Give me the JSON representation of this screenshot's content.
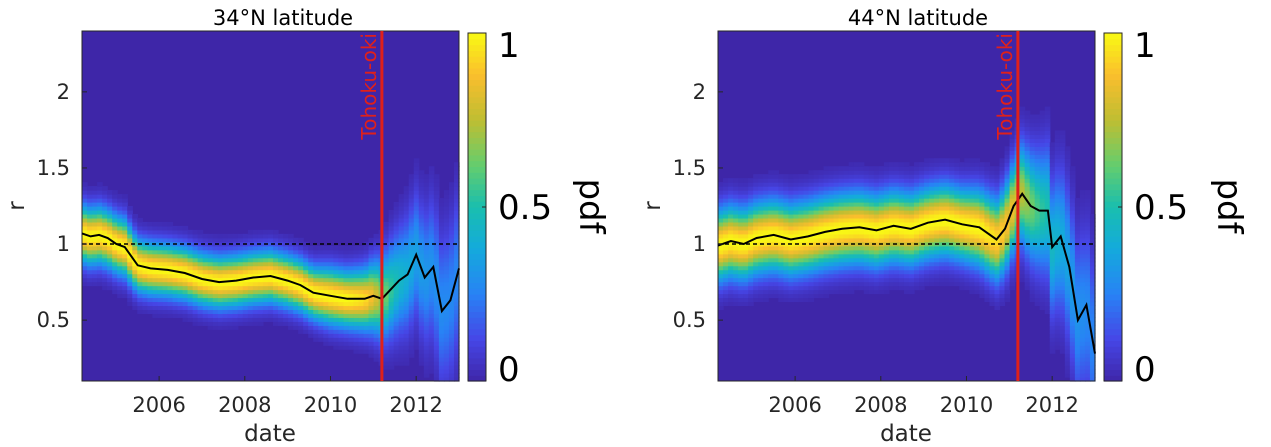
{
  "chart_data": [
    {
      "type": "heatmap",
      "title": "34°N latitude",
      "xlabel": "date",
      "ylabel": "r",
      "xlim": [
        2004.2,
        2013.0
      ],
      "ylim": [
        0.1,
        2.4
      ],
      "x_ticks": [
        2006,
        2008,
        2010,
        2012
      ],
      "x_tick_labels": [
        "2006",
        "2008",
        "2010",
        "2012"
      ],
      "y_ticks": [
        0.5,
        1,
        1.5,
        2
      ],
      "y_tick_labels": [
        "0.5",
        "1",
        "1.5",
        "2"
      ],
      "grid": false,
      "colorbar": {
        "label": "pdf",
        "range": [
          0,
          1
        ],
        "ticks": [
          0,
          0.5,
          1
        ],
        "tick_labels": [
          "0",
          "0.5",
          "1"
        ],
        "colormap": "parula"
      },
      "reference_line": {
        "y": 1,
        "style": "dashed",
        "color": "#000000"
      },
      "event_line": {
        "x": 2011.2,
        "label": "Tohoku-oki",
        "color": "#e0201a"
      },
      "series": [
        {
          "x": [
            2004.2,
            2004.4,
            2004.6,
            2004.8,
            2005.0,
            2005.2,
            2005.5,
            2005.8,
            2006.2,
            2006.6,
            2007.0,
            2007.4,
            2007.8,
            2008.2,
            2008.6,
            2009.0,
            2009.3,
            2009.6,
            2010.0,
            2010.4,
            2010.8,
            2011.0,
            2011.2,
            2011.4,
            2011.6,
            2011.8,
            2012.0,
            2012.2,
            2012.4,
            2012.6,
            2012.8,
            2013.0
          ],
          "y": [
            1.07,
            1.05,
            1.06,
            1.04,
            1.0,
            0.98,
            0.86,
            0.84,
            0.83,
            0.81,
            0.77,
            0.75,
            0.76,
            0.78,
            0.79,
            0.76,
            0.73,
            0.68,
            0.66,
            0.64,
            0.64,
            0.66,
            0.64,
            0.7,
            0.76,
            0.8,
            0.93,
            0.78,
            0.85,
            0.56,
            0.63,
            0.84
          ],
          "pdf_spread": [
            0.12,
            0.12,
            0.12,
            0.12,
            0.12,
            0.12,
            0.11,
            0.11,
            0.11,
            0.11,
            0.11,
            0.11,
            0.11,
            0.11,
            0.11,
            0.11,
            0.11,
            0.11,
            0.12,
            0.12,
            0.13,
            0.15,
            0.17,
            0.2,
            0.22,
            0.24,
            0.26,
            0.28,
            0.3,
            0.32,
            0.33,
            0.34
          ],
          "pdf_peak": [
            1,
            1,
            1,
            1,
            1,
            1,
            1,
            1,
            1,
            1,
            1,
            1,
            1,
            1,
            1,
            1,
            1,
            1,
            1,
            1,
            0.95,
            0.85,
            0.7,
            0.55,
            0.45,
            0.4,
            0.35,
            0.32,
            0.3,
            0.28,
            0.27,
            0.26
          ]
        }
      ]
    },
    {
      "type": "heatmap",
      "title": "44°N latitude",
      "xlabel": "date",
      "ylabel": "r",
      "xlim": [
        2004.2,
        2013.0
      ],
      "ylim": [
        0.1,
        2.4
      ],
      "x_ticks": [
        2006,
        2008,
        2010,
        2012
      ],
      "x_tick_labels": [
        "2006",
        "2008",
        "2010",
        "2012"
      ],
      "y_ticks": [
        0.5,
        1,
        1.5,
        2
      ],
      "y_tick_labels": [
        "0.5",
        "1",
        "1.5",
        "2"
      ],
      "grid": false,
      "colorbar": {
        "label": "pdf",
        "range": [
          0,
          1
        ],
        "ticks": [
          0,
          0.5,
          1
        ],
        "tick_labels": [
          "0",
          "0.5",
          "1"
        ],
        "colormap": "parula"
      },
      "reference_line": {
        "y": 1,
        "style": "dashed",
        "color": "#000000"
      },
      "event_line": {
        "x": 2011.2,
        "label": "Tohoku-oki",
        "color": "#e0201a"
      },
      "series": [
        {
          "x": [
            2004.2,
            2004.5,
            2004.8,
            2005.1,
            2005.5,
            2005.9,
            2006.3,
            2006.7,
            2007.1,
            2007.5,
            2007.9,
            2008.3,
            2008.7,
            2009.1,
            2009.5,
            2009.9,
            2010.3,
            2010.7,
            2010.9,
            2011.1,
            2011.3,
            2011.5,
            2011.7,
            2011.9,
            2012.0,
            2012.2,
            2012.4,
            2012.6,
            2012.8,
            2013.0
          ],
          "y": [
            0.99,
            1.02,
            1.0,
            1.04,
            1.06,
            1.03,
            1.05,
            1.08,
            1.1,
            1.11,
            1.09,
            1.12,
            1.1,
            1.14,
            1.16,
            1.13,
            1.11,
            1.03,
            1.1,
            1.25,
            1.33,
            1.25,
            1.22,
            1.22,
            0.98,
            1.05,
            0.85,
            0.5,
            0.6,
            0.28
          ],
          "pdf_spread": [
            0.15,
            0.15,
            0.15,
            0.15,
            0.15,
            0.15,
            0.15,
            0.15,
            0.15,
            0.15,
            0.15,
            0.15,
            0.15,
            0.15,
            0.15,
            0.15,
            0.16,
            0.17,
            0.18,
            0.19,
            0.21,
            0.23,
            0.25,
            0.27,
            0.28,
            0.3,
            0.32,
            0.34,
            0.35,
            0.36
          ],
          "pdf_peak": [
            1,
            1,
            1,
            1,
            1,
            1,
            1,
            1,
            1,
            1,
            1,
            1,
            1,
            1,
            1,
            1,
            1,
            0.95,
            0.9,
            0.85,
            0.75,
            0.65,
            0.55,
            0.5,
            0.45,
            0.4,
            0.35,
            0.3,
            0.28,
            0.26
          ]
        }
      ]
    }
  ]
}
